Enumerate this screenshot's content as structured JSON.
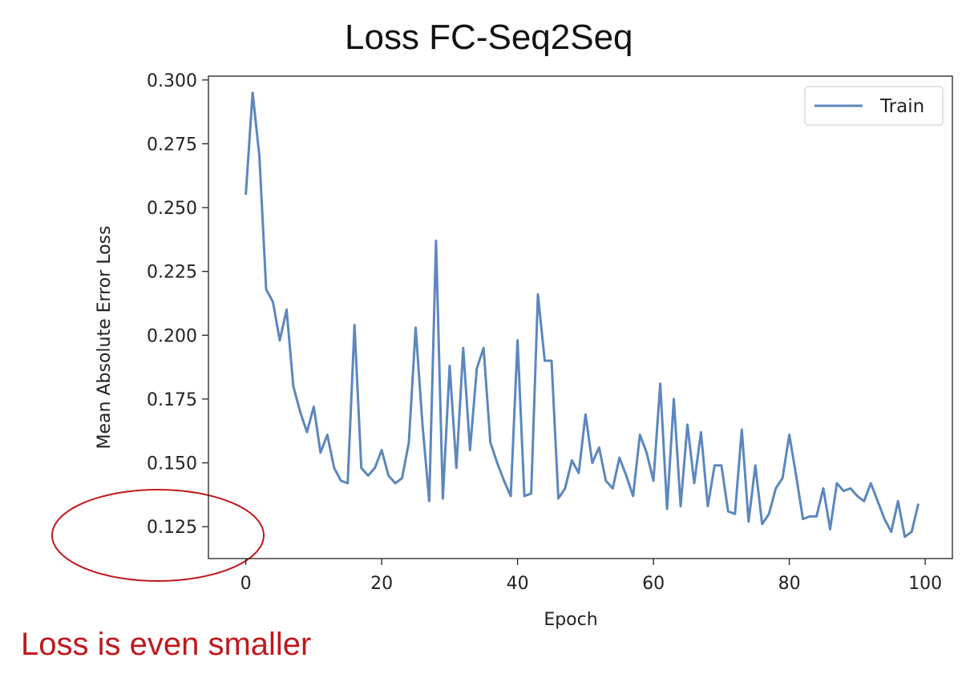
{
  "slide": {
    "title": "Loss FC-Seq2Seq",
    "annotation": "Loss is even smaller"
  },
  "colors": {
    "line": "#5b87bd",
    "axis": "#222222",
    "annotation": "#c0181c"
  },
  "chart_data": {
    "type": "line",
    "title": "Loss FC-Seq2Seq",
    "xlabel": "Epoch",
    "ylabel": "Mean Absolute Error Loss",
    "xlim": [
      -5.5,
      104
    ],
    "ylim": [
      0.1125,
      0.3015
    ],
    "xticks": [
      0,
      20,
      40,
      60,
      80,
      100
    ],
    "xtick_labels": [
      "0",
      "20",
      "40",
      "60",
      "80",
      "100"
    ],
    "yticks": [
      0.125,
      0.15,
      0.175,
      0.2,
      0.225,
      0.25,
      0.275,
      0.3
    ],
    "ytick_labels": [
      "0.125",
      "0.150",
      "0.175",
      "0.200",
      "0.225",
      "0.250",
      "0.275",
      "0.300"
    ],
    "grid": false,
    "legend": {
      "position": "top-right",
      "entries": [
        "Train"
      ]
    },
    "series": [
      {
        "name": "Train",
        "x": [
          0,
          1,
          2,
          3,
          4,
          5,
          6,
          7,
          8,
          9,
          10,
          11,
          12,
          13,
          14,
          15,
          16,
          17,
          18,
          19,
          20,
          21,
          22,
          23,
          24,
          25,
          26,
          27,
          28,
          29,
          30,
          31,
          32,
          33,
          34,
          35,
          36,
          37,
          38,
          39,
          40,
          41,
          42,
          43,
          44,
          45,
          46,
          47,
          48,
          49,
          50,
          51,
          52,
          53,
          54,
          55,
          56,
          57,
          58,
          59,
          60,
          61,
          62,
          63,
          64,
          65,
          66,
          67,
          68,
          69,
          70,
          71,
          72,
          73,
          74,
          75,
          76,
          77,
          78,
          79,
          80,
          81,
          82,
          83,
          84,
          85,
          86,
          87,
          88,
          89,
          90,
          91,
          92,
          93,
          94,
          95,
          96,
          97,
          98,
          99
        ],
        "values": [
          0.255,
          0.295,
          0.27,
          0.218,
          0.213,
          0.198,
          0.21,
          0.18,
          0.17,
          0.162,
          0.172,
          0.154,
          0.161,
          0.148,
          0.143,
          0.142,
          0.204,
          0.148,
          0.145,
          0.148,
          0.155,
          0.145,
          0.142,
          0.144,
          0.158,
          0.203,
          0.165,
          0.135,
          0.237,
          0.136,
          0.188,
          0.148,
          0.195,
          0.155,
          0.187,
          0.195,
          0.158,
          0.15,
          0.143,
          0.137,
          0.198,
          0.137,
          0.138,
          0.216,
          0.19,
          0.19,
          0.136,
          0.14,
          0.151,
          0.146,
          0.169,
          0.15,
          0.156,
          0.143,
          0.14,
          0.152,
          0.145,
          0.137,
          0.161,
          0.154,
          0.143,
          0.181,
          0.132,
          0.175,
          0.133,
          0.165,
          0.142,
          0.162,
          0.133,
          0.149,
          0.149,
          0.131,
          0.13,
          0.163,
          0.127,
          0.149,
          0.126,
          0.13,
          0.14,
          0.144,
          0.161,
          0.145,
          0.128,
          0.129,
          0.129,
          0.14,
          0.124,
          0.142,
          0.139,
          0.14,
          0.137,
          0.135,
          0.142,
          0.135,
          0.128,
          0.123,
          0.135,
          0.121,
          0.123,
          0.134
        ]
      }
    ]
  }
}
